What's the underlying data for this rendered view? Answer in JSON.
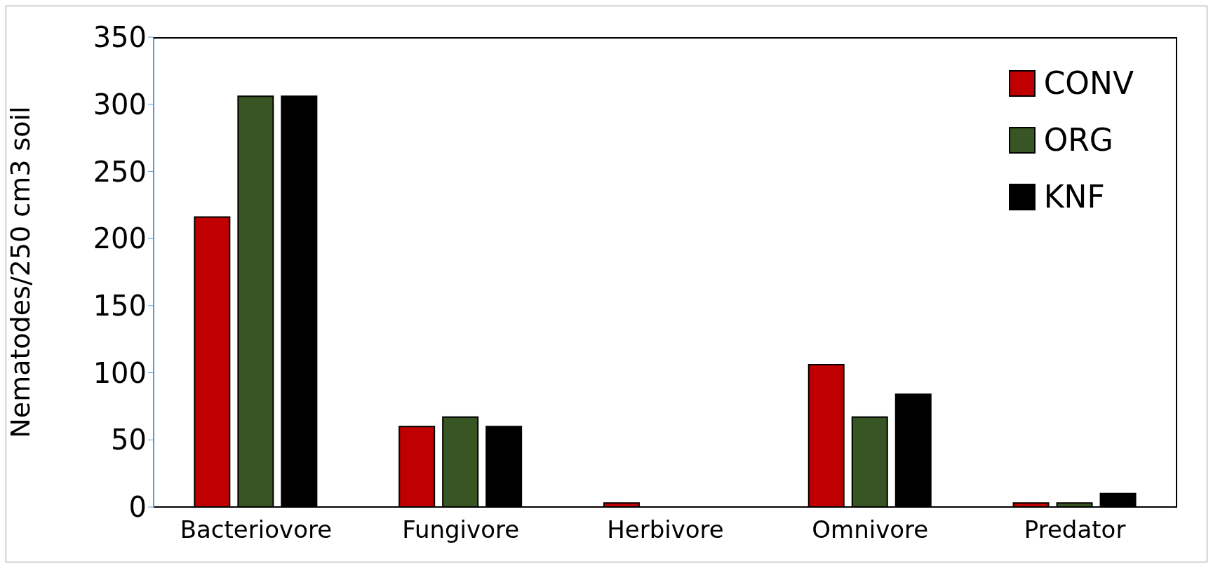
{
  "chart_data": {
    "type": "bar",
    "ylabel": "Nematodes/250 cm3 soil",
    "categories": [
      "Bacteriovore",
      "Fungivore",
      "Herbivore",
      "Omnivore",
      "Predator"
    ],
    "series": [
      {
        "name": "CONV",
        "color": "#c00000",
        "values": [
          216,
          60,
          3,
          106,
          3
        ]
      },
      {
        "name": "ORG",
        "color": "#375623",
        "values": [
          306,
          67,
          0,
          67,
          3
        ]
      },
      {
        "name": "KNF",
        "color": "#000000",
        "values": [
          306,
          60,
          0,
          84,
          10
        ]
      }
    ],
    "ylim": [
      0,
      350
    ],
    "yticks": [
      0,
      50,
      100,
      150,
      200,
      250,
      300,
      350
    ],
    "grid": false,
    "legend": "top right"
  }
}
